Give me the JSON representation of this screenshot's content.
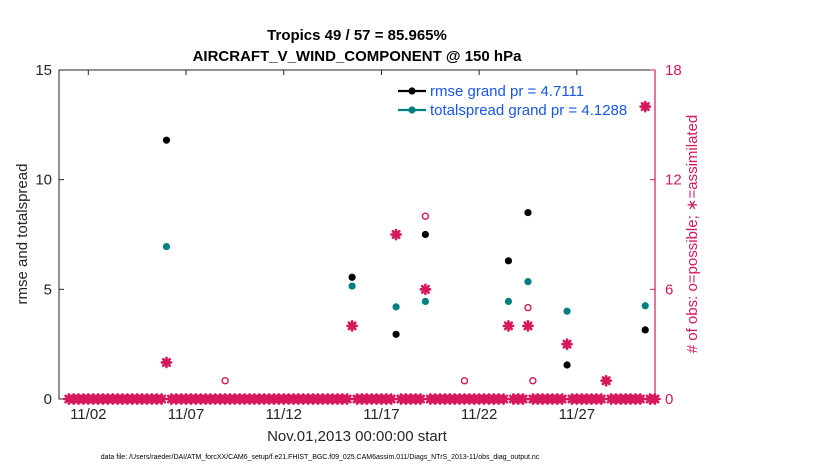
{
  "chart_data": {
    "type": "scatter",
    "title": "Tropics 49 / 57 = 85.965%",
    "subtitle": "AIRCRAFT_V_WIND_COMPONENT @ 150 hPa",
    "xlabel": "Nov.01,2013 00:00:00 start",
    "ylabel": "rmse and totalspread",
    "ylabel_right": "# of obs: o=possible; ∗=assimilated",
    "footnote": "data file: /Users/raeder/DAI/ATM_forcXX/CAM6_setup/f.e21.FHIST_BGC.f09_025.CAM6assim.011/Diags_NTrS_2013-11/obs_diag_output.nc",
    "xlim": [
      0.5,
      31.0
    ],
    "ylim": [
      0,
      15
    ],
    "ylim_right": [
      0,
      18
    ],
    "x_ticks": [
      2,
      7,
      12,
      17,
      22,
      27
    ],
    "x_tick_labels": [
      "11/02",
      "11/07",
      "11/12",
      "11/17",
      "11/22",
      "11/27"
    ],
    "y_ticks": [
      0,
      5,
      10,
      15
    ],
    "y_ticks_right": [
      0,
      6,
      12,
      18
    ],
    "colors": {
      "rmse": "#000000",
      "spread": "#008080",
      "obs": "#d6185c",
      "legend_text": "#1a56e8",
      "right_axis": "#d6185c"
    },
    "legend": [
      {
        "name": "rmse",
        "label": "rmse grand pr = 4.7111",
        "color": "#000000"
      },
      {
        "name": "totalspread",
        "label": "totalspread grand pr = 4.1288",
        "color": "#008080"
      }
    ],
    "series": [
      {
        "name": "rmse",
        "axis": "left",
        "marker": "dot",
        "points": [
          [
            6.0,
            11.8
          ],
          [
            15.5,
            5.55
          ],
          [
            17.75,
            2.95
          ],
          [
            19.25,
            7.5
          ],
          [
            23.5,
            6.3
          ],
          [
            24.5,
            8.5
          ],
          [
            26.5,
            1.55
          ],
          [
            30.5,
            3.15
          ]
        ]
      },
      {
        "name": "totalspread",
        "axis": "left",
        "marker": "dot",
        "points": [
          [
            6.0,
            6.95
          ],
          [
            15.5,
            5.15
          ],
          [
            17.75,
            4.2
          ],
          [
            19.25,
            4.45
          ],
          [
            23.5,
            4.45
          ],
          [
            24.5,
            5.35
          ],
          [
            26.5,
            4.0
          ],
          [
            30.5,
            4.25
          ]
        ]
      },
      {
        "name": "possible",
        "axis": "right",
        "marker": "o",
        "points": [
          [
            6.0,
            2
          ],
          [
            9.0,
            1
          ],
          [
            15.5,
            4
          ],
          [
            17.75,
            9
          ],
          [
            19.25,
            10
          ],
          [
            21.25,
            1
          ],
          [
            23.5,
            4
          ],
          [
            24.5,
            5
          ],
          [
            24.75,
            1
          ],
          [
            26.5,
            3
          ],
          [
            28.5,
            1
          ],
          [
            30.5,
            16
          ]
        ]
      },
      {
        "name": "assimilated",
        "axis": "right",
        "marker": "*",
        "points": [
          [
            6.0,
            2
          ],
          [
            15.5,
            4
          ],
          [
            17.75,
            9
          ],
          [
            19.25,
            6
          ],
          [
            23.5,
            4
          ],
          [
            24.5,
            4
          ],
          [
            26.5,
            3
          ],
          [
            28.5,
            1
          ],
          [
            30.5,
            16
          ]
        ]
      }
    ]
  }
}
